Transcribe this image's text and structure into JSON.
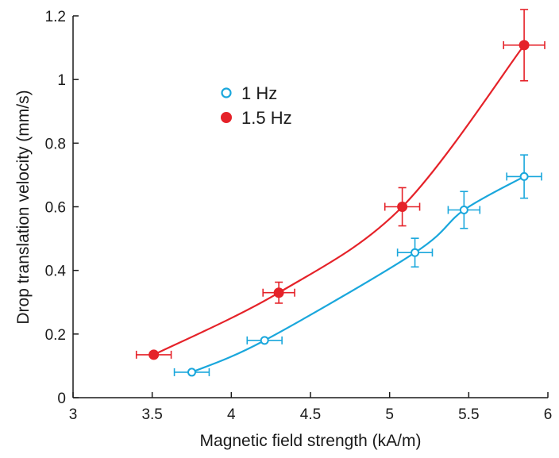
{
  "chart_data": {
    "type": "scatter",
    "title": "",
    "xlabel": "Magnetic field strength (kA/m)",
    "ylabel": "Drop translation velocity (mm/s)",
    "xlim": [
      3,
      6
    ],
    "ylim": [
      0,
      1.2
    ],
    "x_ticks": [
      "3",
      "3.5",
      "4",
      "4.5",
      "5",
      "5.5",
      "6"
    ],
    "y_ticks": [
      "0",
      "0.2",
      "0.4",
      "0.6",
      "0.8",
      "1",
      "1.2"
    ],
    "x_tick_values": [
      3,
      3.5,
      4,
      4.5,
      5,
      5.5,
      6
    ],
    "y_tick_values": [
      0,
      0.2,
      0.4,
      0.6,
      0.8,
      1.0,
      1.2
    ],
    "grid": false,
    "legend_position": "top-left",
    "series": [
      {
        "name": "1 Hz",
        "marker": "open-circle",
        "color": "#1aa7dc",
        "points": [
          {
            "x": 3.75,
            "y": 0.08,
            "xerr": 0.11,
            "yerr": 0.0
          },
          {
            "x": 4.21,
            "y": 0.18,
            "xerr": 0.11,
            "yerr": 0.0
          },
          {
            "x": 5.16,
            "y": 0.456,
            "xerr": 0.11,
            "yerr": 0.045
          },
          {
            "x": 5.47,
            "y": 0.59,
            "xerr": 0.1,
            "yerr": 0.058
          },
          {
            "x": 5.85,
            "y": 0.695,
            "xerr": 0.11,
            "yerr": 0.068
          }
        ]
      },
      {
        "name": "1.5 Hz",
        "marker": "filled-circle",
        "color": "#e52229",
        "points": [
          {
            "x": 3.51,
            "y": 0.135,
            "xerr": 0.11,
            "yerr": 0.0
          },
          {
            "x": 4.3,
            "y": 0.33,
            "xerr": 0.1,
            "yerr": 0.033
          },
          {
            "x": 5.08,
            "y": 0.6,
            "xerr": 0.11,
            "yerr": 0.06
          },
          {
            "x": 5.85,
            "y": 1.108,
            "xerr": 0.13,
            "yerr": 0.112
          }
        ]
      }
    ]
  }
}
